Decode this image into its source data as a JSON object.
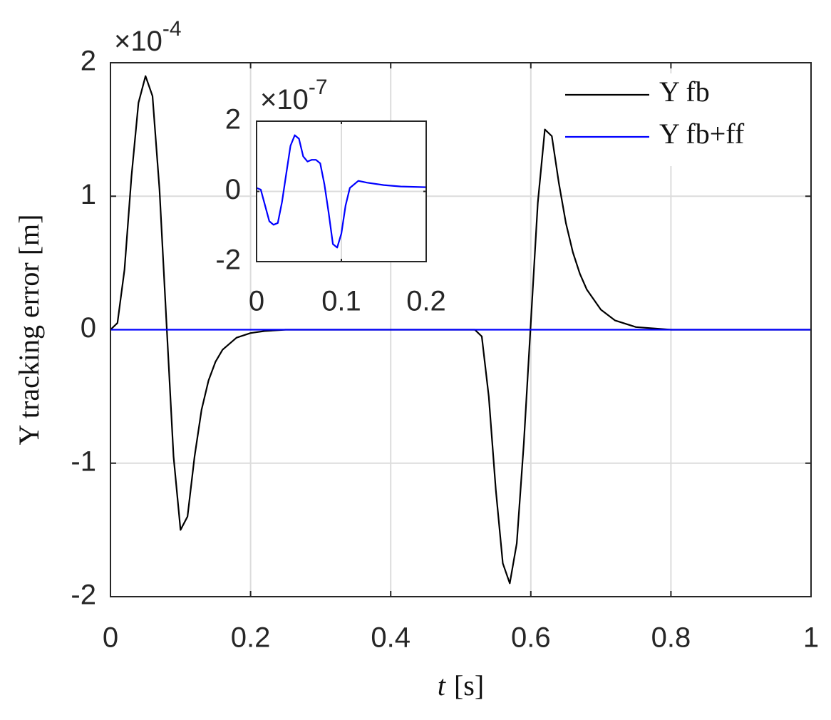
{
  "chart_data": [
    {
      "type": "line",
      "ylabel": "Y tracking error [m]",
      "xlabel_symbol": "t",
      "xlabel_unit": "[s]",
      "y_multiplier_base": "×10",
      "y_multiplier_exponent": "-4",
      "x": [
        0,
        0.01,
        0.02,
        0.03,
        0.04,
        0.05,
        0.06,
        0.07,
        0.08,
        0.09,
        0.1,
        0.11,
        0.12,
        0.13,
        0.14,
        0.15,
        0.16,
        0.18,
        0.2,
        0.22,
        0.25,
        0.3,
        0.4,
        0.5,
        0.52,
        0.53,
        0.54,
        0.55,
        0.56,
        0.57,
        0.58,
        0.59,
        0.6,
        0.61,
        0.62,
        0.63,
        0.64,
        0.65,
        0.66,
        0.67,
        0.68,
        0.7,
        0.72,
        0.75,
        0.8,
        0.9,
        1
      ],
      "series": [
        {
          "name": "Y fb",
          "color": "#000000",
          "values": [
            0,
            0.05,
            0.45,
            1.15,
            1.7,
            1.9,
            1.75,
            1.05,
            0.05,
            -0.95,
            -1.5,
            -1.4,
            -0.95,
            -0.6,
            -0.38,
            -0.24,
            -0.15,
            -0.06,
            -0.025,
            -0.01,
            0,
            0,
            0,
            0,
            0,
            -0.05,
            -0.5,
            -1.2,
            -1.75,
            -1.9,
            -1.6,
            -0.85,
            0.05,
            0.95,
            1.5,
            1.45,
            1.1,
            0.8,
            0.58,
            0.42,
            0.3,
            0.15,
            0.07,
            0.02,
            0,
            0,
            0
          ]
        },
        {
          "name": "Y fb+ff",
          "color": "#0000ff",
          "values": [
            0,
            0,
            0,
            0,
            0,
            0,
            0,
            0,
            0,
            0,
            0,
            0,
            0,
            0,
            0,
            0,
            0,
            0,
            0,
            0,
            0,
            0,
            0,
            0,
            0,
            0,
            0,
            0,
            0,
            0,
            0,
            0,
            0,
            0,
            0,
            0,
            0,
            0,
            0,
            0,
            0,
            0,
            0,
            0,
            0,
            0,
            0
          ]
        }
      ],
      "xlim": [
        0,
        1
      ],
      "xticks": [
        0,
        0.2,
        0.4,
        0.6,
        0.8,
        1
      ],
      "ylim": [
        -2,
        2
      ],
      "yticks": [
        -2,
        -1,
        0,
        1,
        2
      ],
      "grid": true,
      "legend": "upper right"
    },
    {
      "type": "line",
      "y_multiplier_base": "×10",
      "y_multiplier_exponent": "-7",
      "x": [
        0,
        0.005,
        0.01,
        0.015,
        0.02,
        0.025,
        0.03,
        0.035,
        0.04,
        0.045,
        0.05,
        0.055,
        0.06,
        0.065,
        0.07,
        0.075,
        0.08,
        0.085,
        0.09,
        0.095,
        0.1,
        0.105,
        0.11,
        0.12,
        0.13,
        0.15,
        0.17,
        0.2
      ],
      "series": [
        {
          "color": "#0000ff",
          "values": [
            0.1,
            0.05,
            -0.4,
            -0.85,
            -0.95,
            -0.9,
            -0.3,
            0.5,
            1.3,
            1.6,
            1.5,
            1.0,
            0.85,
            0.9,
            0.9,
            0.8,
            0.2,
            -0.6,
            -1.5,
            -1.6,
            -1.2,
            -0.4,
            0.1,
            0.3,
            0.25,
            0.18,
            0.14,
            0.12
          ]
        }
      ],
      "xlim": [
        0,
        0.2
      ],
      "xticks": [
        0,
        0.1,
        0.2
      ],
      "ylim": [
        -2,
        2
      ],
      "yticks": [
        -2,
        0,
        2
      ],
      "grid": true
    }
  ]
}
